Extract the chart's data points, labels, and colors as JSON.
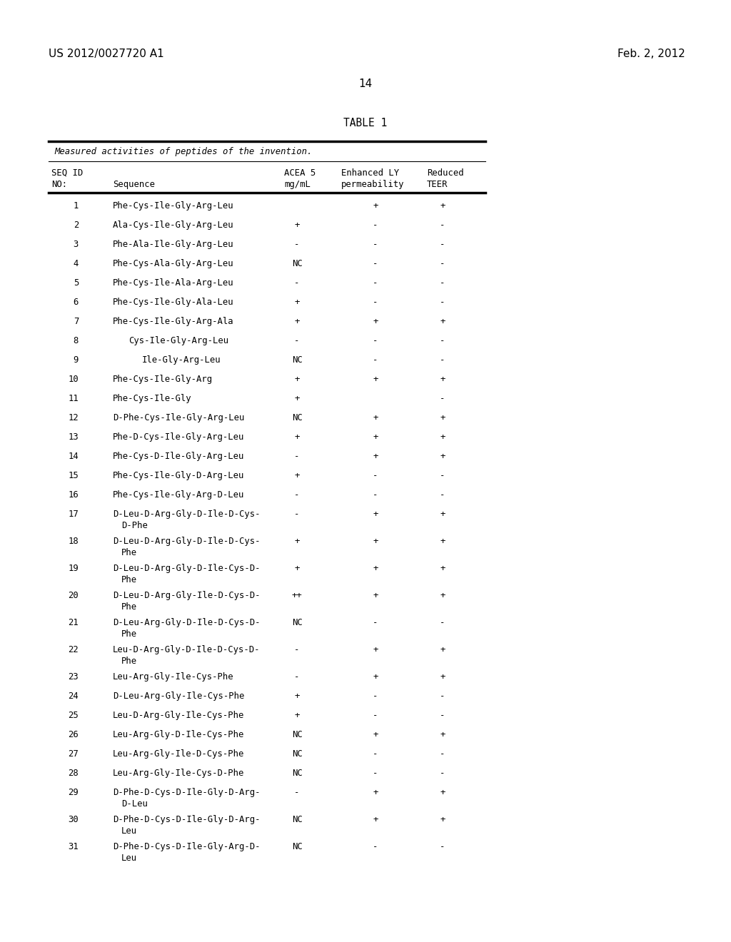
{
  "patent_number": "US 2012/0027720 A1",
  "date": "Feb. 2, 2012",
  "page_number": "14",
  "table_title": "TABLE 1",
  "table_subtitle": "Measured activities of peptides of the invention.",
  "rows": [
    [
      "1",
      "Phe-Cys-Ile-Gly-Arg-Leu",
      "",
      "+",
      "+"
    ],
    [
      "2",
      "Ala-Cys-Ile-Gly-Arg-Leu",
      "+",
      "-",
      "-"
    ],
    [
      "3",
      "Phe-Ala-Ile-Gly-Arg-Leu",
      "-",
      "-",
      "-"
    ],
    [
      "4",
      "Phe-Cys-Ala-Gly-Arg-Leu",
      "NC",
      "-",
      "-"
    ],
    [
      "5",
      "Phe-Cys-Ile-Ala-Arg-Leu",
      "-",
      "-",
      "-"
    ],
    [
      "6",
      "Phe-Cys-Ile-Gly-Ala-Leu",
      "+",
      "-",
      "-"
    ],
    [
      "7",
      "Phe-Cys-Ile-Gly-Arg-Ala",
      "+",
      "+",
      "+"
    ],
    [
      "8",
      "     Cys-Ile-Gly-Arg-Leu",
      "-",
      "-",
      "-"
    ],
    [
      "9",
      "         Ile-Gly-Arg-Leu",
      "NC",
      "-",
      "-"
    ],
    [
      "10",
      "Phe-Cys-Ile-Gly-Arg",
      "+",
      "+",
      "+"
    ],
    [
      "11",
      "Phe-Cys-Ile-Gly",
      "+",
      "",
      "-"
    ],
    [
      "12",
      "D-Phe-Cys-Ile-Gly-Arg-Leu",
      "NC",
      "+",
      "+"
    ],
    [
      "13",
      "Phe-D-Cys-Ile-Gly-Arg-Leu",
      "+",
      "+",
      "+"
    ],
    [
      "14",
      "Phe-Cys-D-Ile-Gly-Arg-Leu",
      "-",
      "+",
      "+"
    ],
    [
      "15",
      "Phe-Cys-Ile-Gly-D-Arg-Leu",
      "+",
      "-",
      "-"
    ],
    [
      "16",
      "Phe-Cys-Ile-Gly-Arg-D-Leu",
      "-",
      "-",
      "-"
    ],
    [
      "17",
      "D-Leu-D-Arg-Gly-D-Ile-D-Cys-\nD-Phe",
      "-",
      "+",
      "+"
    ],
    [
      "18",
      "D-Leu-D-Arg-Gly-D-Ile-D-Cys-\nPhe",
      "+",
      "+",
      "+"
    ],
    [
      "19",
      "D-Leu-D-Arg-Gly-D-Ile-Cys-D-\nPhe",
      "+",
      "+",
      "+"
    ],
    [
      "20",
      "D-Leu-D-Arg-Gly-Ile-D-Cys-D-\nPhe",
      "++",
      "+",
      "+"
    ],
    [
      "21",
      "D-Leu-Arg-Gly-D-Ile-D-Cys-D-\nPhe",
      "NC",
      "-",
      "-"
    ],
    [
      "22",
      "Leu-D-Arg-Gly-D-Ile-D-Cys-D-\nPhe",
      "-",
      "+",
      "+"
    ],
    [
      "23",
      "Leu-Arg-Gly-Ile-Cys-Phe",
      "-",
      "+",
      "+"
    ],
    [
      "24",
      "D-Leu-Arg-Gly-Ile-Cys-Phe",
      "+",
      "-",
      "-"
    ],
    [
      "25",
      "Leu-D-Arg-Gly-Ile-Cys-Phe",
      "+",
      "-",
      "-"
    ],
    [
      "26",
      "Leu-Arg-Gly-D-Ile-Cys-Phe",
      "NC",
      "+",
      "+"
    ],
    [
      "27",
      "Leu-Arg-Gly-Ile-D-Cys-Phe",
      "NC",
      "-",
      "-"
    ],
    [
      "28",
      "Leu-Arg-Gly-Ile-Cys-D-Phe",
      "NC",
      "-",
      "-"
    ],
    [
      "29",
      "D-Phe-D-Cys-D-Ile-Gly-D-Arg-\nD-Leu",
      "-",
      "+",
      "+"
    ],
    [
      "30",
      "D-Phe-D-Cys-D-Ile-Gly-D-Arg-\nLeu",
      "NC",
      "+",
      "+"
    ],
    [
      "31",
      "D-Phe-D-Cys-D-Ile-Gly-Arg-D-\nLeu",
      "NC",
      "-",
      "-"
    ]
  ],
  "bg_color": "#ffffff",
  "text_color": "#000000"
}
